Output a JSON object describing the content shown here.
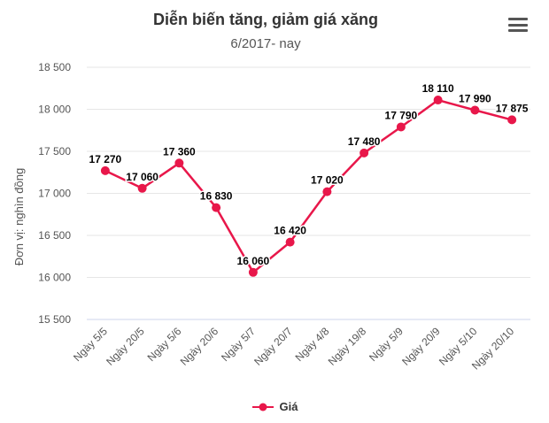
{
  "chart_data": {
    "type": "line",
    "title": "Diễn biến tăng, giảm giá xăng",
    "subtitle": "6/2017- nay",
    "ylabel": "Đơn vị: nghìn đồng",
    "xlabel": "",
    "ylim": [
      15500,
      18500
    ],
    "yticks": [
      15500,
      16000,
      16500,
      17000,
      17500,
      18000,
      18500
    ],
    "ytick_labels": [
      "15 500",
      "16 000",
      "16 500",
      "17 000",
      "17 500",
      "18 000",
      "18 500"
    ],
    "categories": [
      "Ngày 5/5",
      "Ngày 20/5",
      "Ngày 5/6",
      "Ngày 20/6",
      "Ngày 5/7",
      "Ngày 20/7",
      "Ngày 4/8",
      "Ngày 19/8",
      "Ngày 5/9",
      "Ngày 20/9",
      "Ngày 5/10",
      "Ngày 20/10"
    ],
    "series": [
      {
        "name": "Giá",
        "color": "#e8174a",
        "values": [
          17270,
          17060,
          17360,
          16830,
          16060,
          16420,
          17020,
          17480,
          17790,
          18110,
          17990,
          17875
        ],
        "labels": [
          "17 270",
          "17 060",
          "17 360",
          "16 830",
          "16 060",
          "16 420",
          "17 020",
          "17 480",
          "17 790",
          "18 110",
          "17 990",
          "17 875"
        ]
      }
    ],
    "grid": "horizontal",
    "legend": "bottom-center"
  },
  "menu_icon": "hamburger-menu-icon"
}
